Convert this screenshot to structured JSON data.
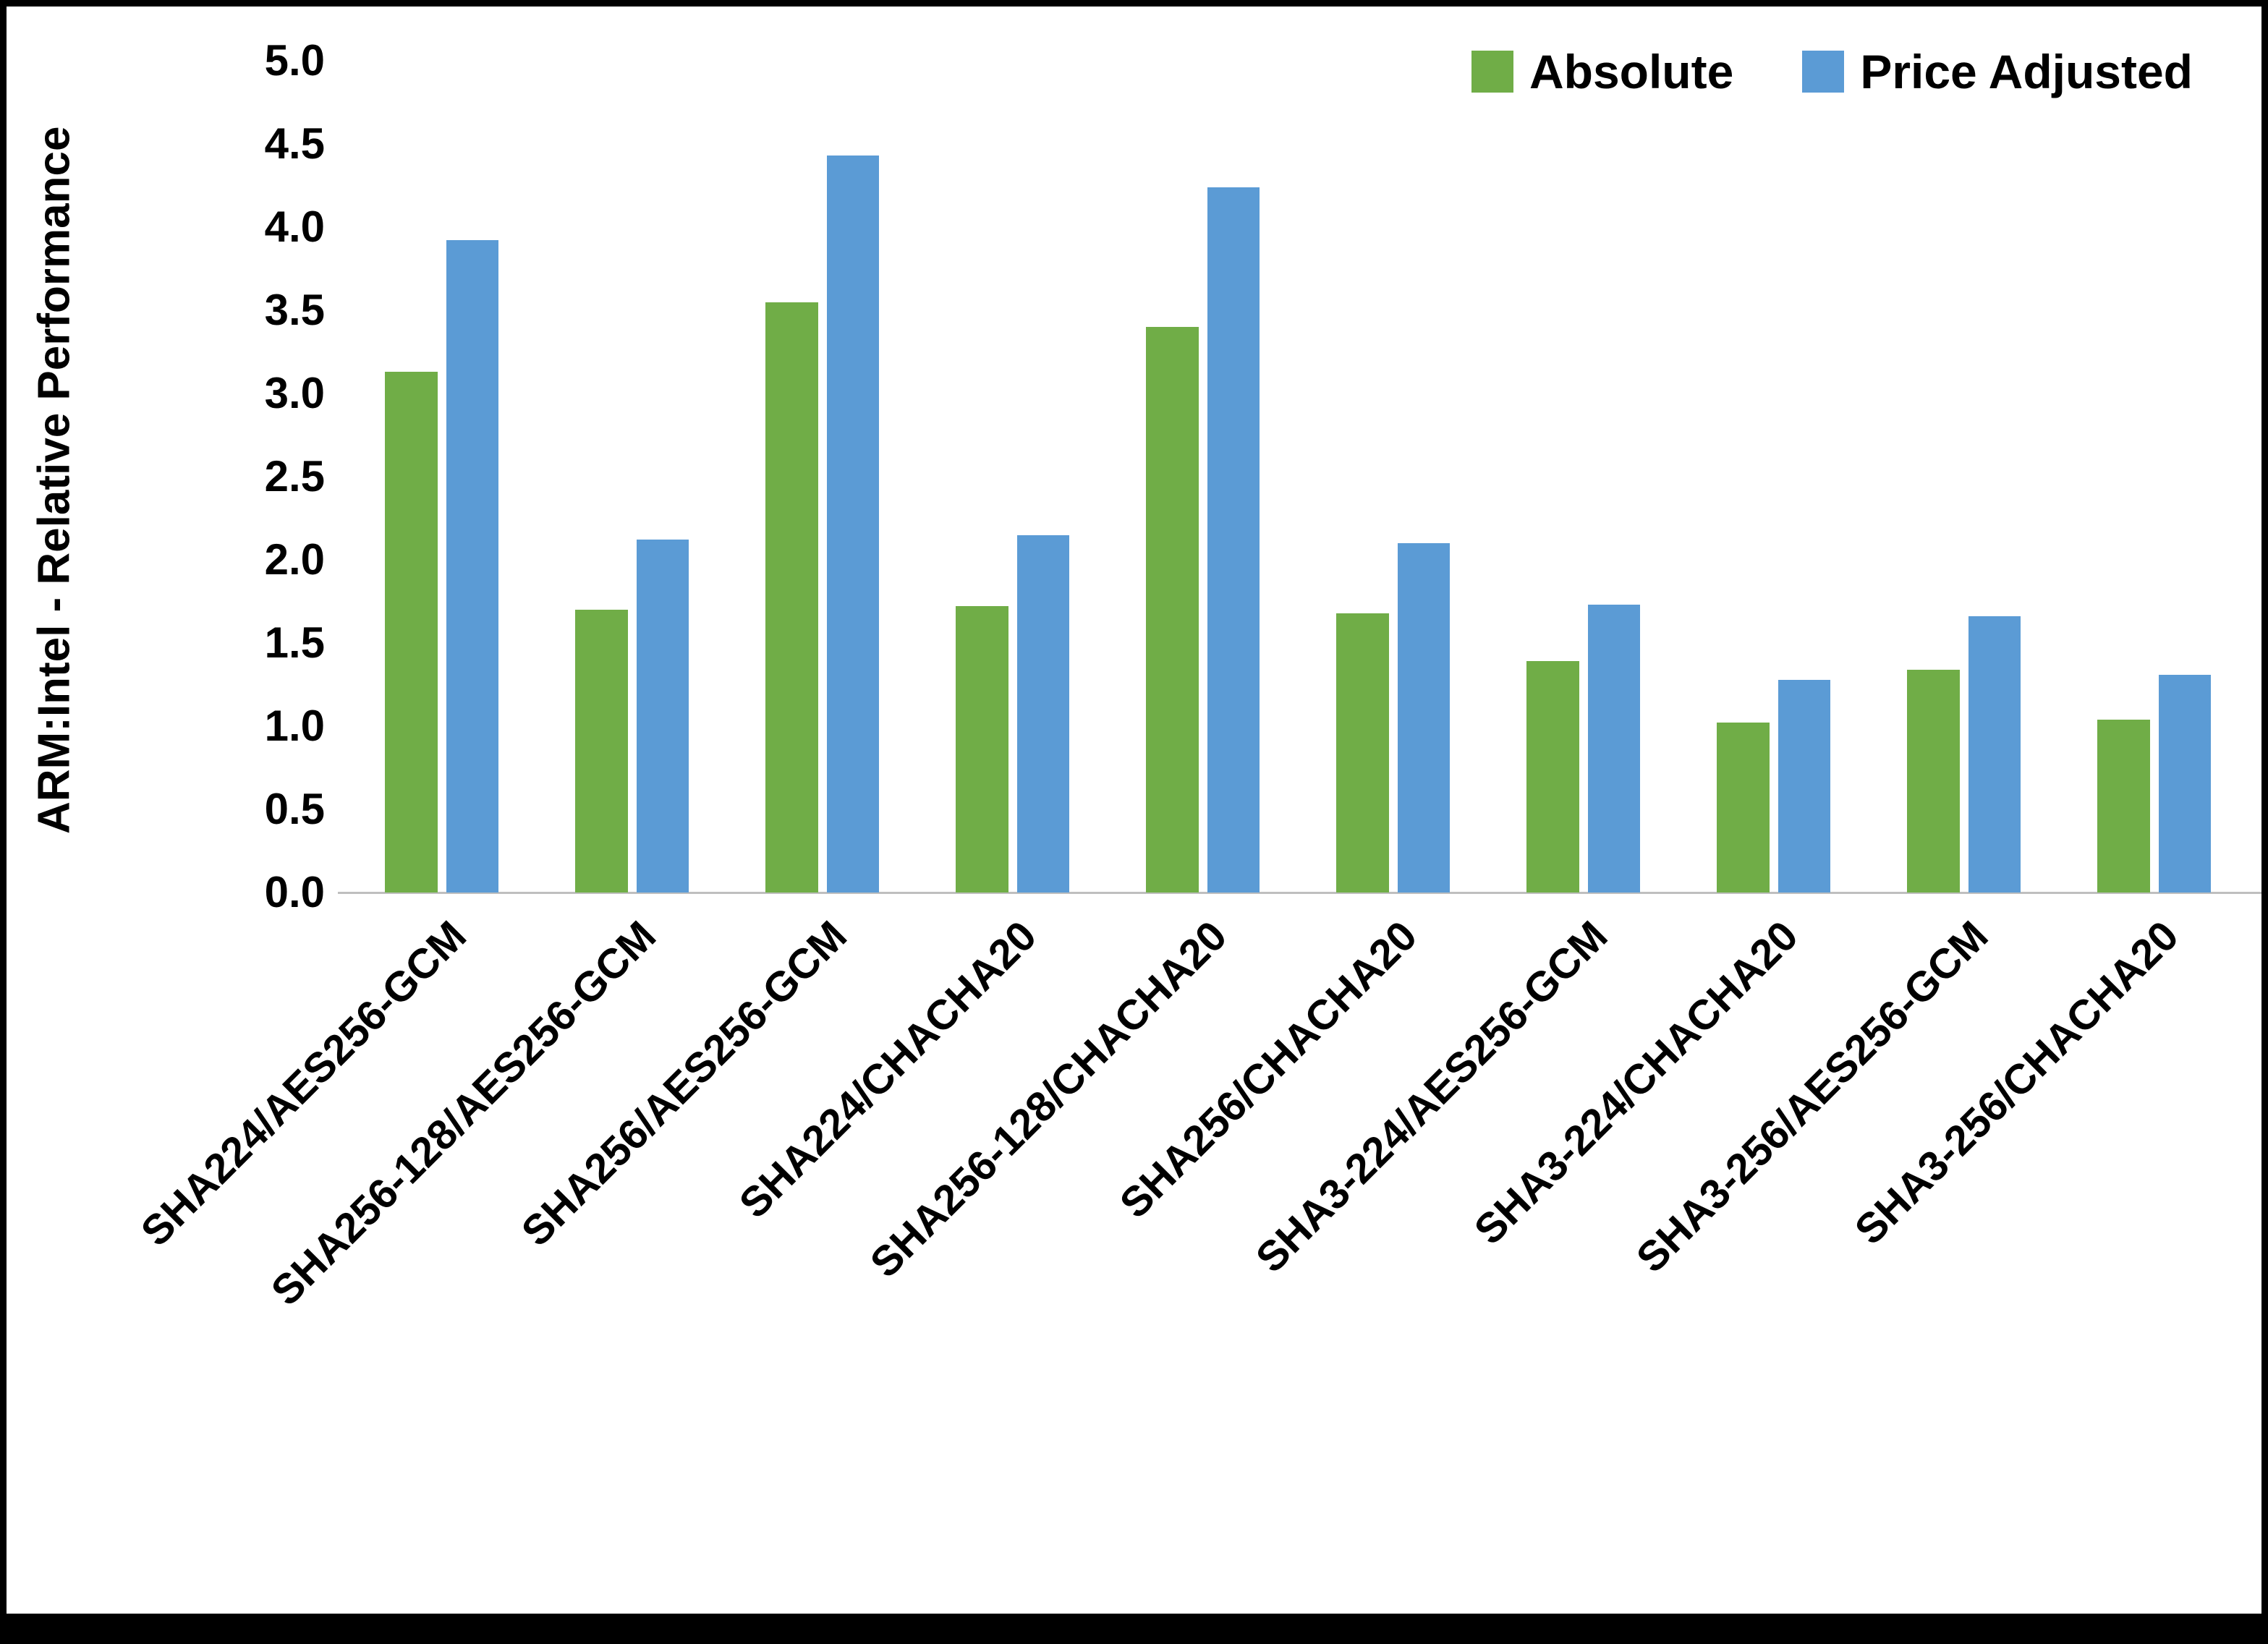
{
  "page": {
    "background": "#ffffff",
    "frame_color": "#000000",
    "axis_line_color": "#BFBFBF"
  },
  "chart_data": {
    "type": "bar",
    "ylabel": "ARM:Intel - Relative Performance",
    "ylim": [
      0,
      5
    ],
    "ytick_step": 0.5,
    "grid": false,
    "legend_position": "top-right",
    "categories": [
      "SHA224/AES256-GCM",
      "SHA256-128/AES256-GCM",
      "SHA256/AES256-GCM",
      "SHA224/CHACHA20",
      "SHA256-128/CHACHA20",
      "SHA256/CHACHA20",
      "SHA3-224/AES256-GCM",
      "SHA3-224/CHACHA20",
      "SHA3-256/AES256-GCM",
      "SHA3-256/CHACHA20"
    ],
    "series": [
      {
        "name": "Absolute",
        "color": "#70AD47",
        "values": [
          3.13,
          1.7,
          3.55,
          1.72,
          3.4,
          1.68,
          1.39,
          1.02,
          1.34,
          1.04
        ]
      },
      {
        "name": "Price Adjusted",
        "color": "#5B9BD5",
        "values": [
          3.92,
          2.12,
          4.43,
          2.15,
          4.24,
          2.1,
          1.73,
          1.28,
          1.66,
          1.31
        ]
      }
    ]
  }
}
